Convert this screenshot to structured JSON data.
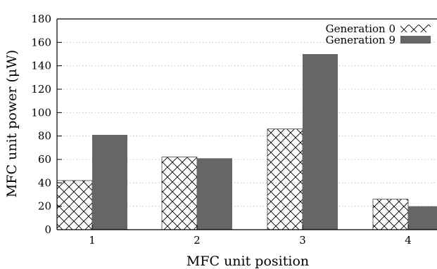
{
  "chart_data": {
    "type": "bar",
    "categories": [
      "1",
      "2",
      "3",
      "4"
    ],
    "series": [
      {
        "name": "Generation 0",
        "values": [
          42,
          62,
          86,
          26
        ],
        "fill": "hatch-cross",
        "color": "#000000"
      },
      {
        "name": "Generation 9",
        "values": [
          81,
          61,
          150,
          20
        ],
        "fill": "solid",
        "color": "#666666"
      }
    ],
    "title": "",
    "xlabel": "MFC unit position",
    "ylabel": "MFC unit power (μW)",
    "ylim": [
      0,
      180
    ],
    "yticks": [
      0,
      20,
      40,
      60,
      80,
      100,
      120,
      140,
      160,
      180
    ],
    "grid": true,
    "legend_position": "top-right"
  }
}
